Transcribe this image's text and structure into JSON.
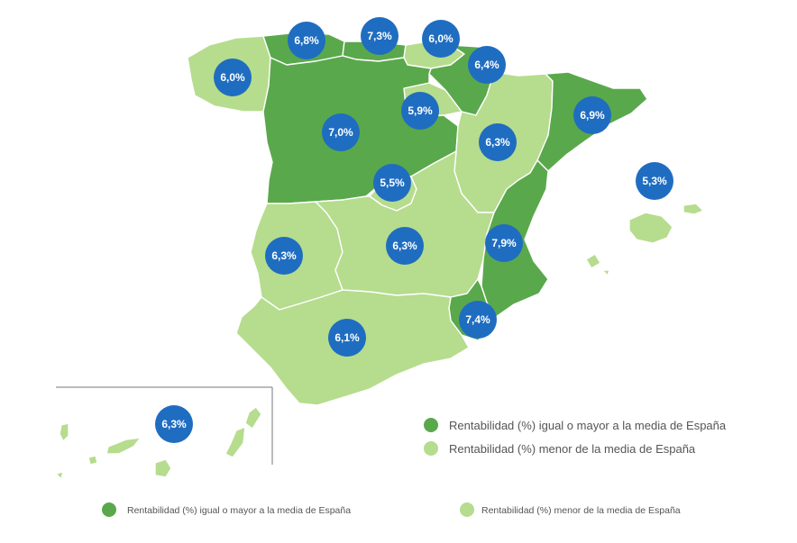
{
  "colors": {
    "above_or_equal": "#5aa84c",
    "below": "#b6dc8e",
    "bubble": "#1f6dc0",
    "bubble_text": "#ffffff",
    "border": "#ffffff",
    "legend_text": "#555555"
  },
  "legend": {
    "above_label": "Rentabilidad (%) igual o mayor a la media de España",
    "below_label": "Rentabilidad (%) menor de la media de España"
  },
  "regions": [
    {
      "id": "galicia",
      "value": "6,0%",
      "category": "below"
    },
    {
      "id": "asturias",
      "value": "6,8%",
      "category": "above"
    },
    {
      "id": "cantabria",
      "value": "7,3%",
      "category": "above"
    },
    {
      "id": "pais-vasco",
      "value": "6,0%",
      "category": "below"
    },
    {
      "id": "navarra",
      "value": "6,4%",
      "category": "above"
    },
    {
      "id": "la-rioja",
      "value": "5,9%",
      "category": "below"
    },
    {
      "id": "castilla-y-leon",
      "value": "7,0%",
      "category": "above"
    },
    {
      "id": "aragon",
      "value": "6,3%",
      "category": "below"
    },
    {
      "id": "cataluna",
      "value": "6,9%",
      "category": "above"
    },
    {
      "id": "madrid",
      "value": "5,5%",
      "category": "below"
    },
    {
      "id": "baleares",
      "value": "5,3%",
      "category": "below"
    },
    {
      "id": "extremadura",
      "value": "6,3%",
      "category": "below"
    },
    {
      "id": "castilla-la-mancha",
      "value": "6,3%",
      "category": "below"
    },
    {
      "id": "comunidad-valenciana",
      "value": "7,9%",
      "category": "above"
    },
    {
      "id": "murcia",
      "value": "7,4%",
      "category": "above"
    },
    {
      "id": "andalucia",
      "value": "6,1%",
      "category": "below"
    },
    {
      "id": "canarias",
      "value": "6,3%",
      "category": "below"
    }
  ]
}
